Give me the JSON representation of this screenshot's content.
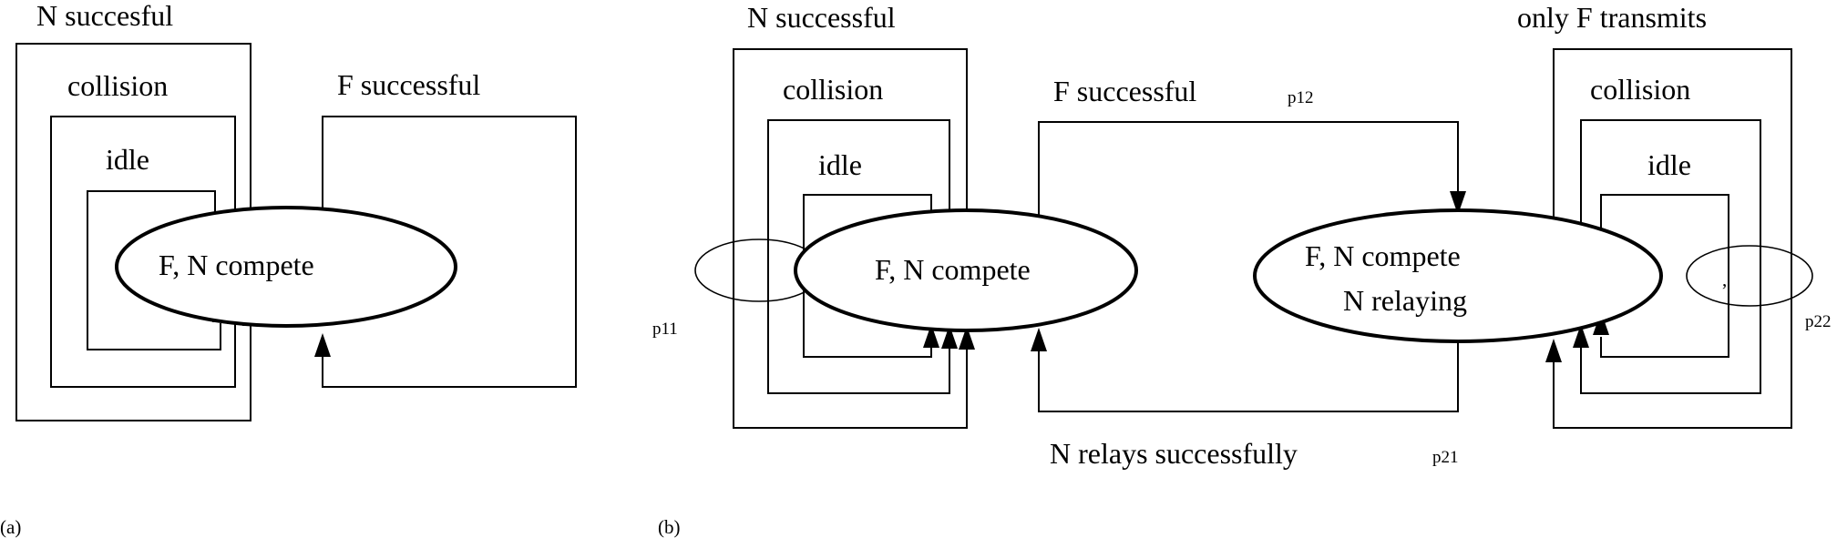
{
  "panel_a": {
    "tag": "(a)",
    "node": "F, N  compete",
    "loops": {
      "n_success": "N   succesful",
      "collision": "collision",
      "idle": "idle",
      "f_success": "F   successful"
    }
  },
  "panel_b": {
    "tag": "(b)",
    "node_left": "F, N  compete",
    "node_right_line1": "F, N  compete",
    "node_right_line2": "N  relaying",
    "left_loops": {
      "n_success": "N   successful",
      "collision": "collision",
      "idle": "idle"
    },
    "right_loops": {
      "only_f": "only  F  transmits",
      "collision": "collision",
      "idle": "idle"
    },
    "f_success": "F   successful",
    "n_relays": "N  relays successfully",
    "p11": "p11",
    "p12": "p12",
    "p21": "p21",
    "p22": "p22"
  },
  "colors": {
    "stroke": "#000000",
    "background": "#ffffff"
  }
}
